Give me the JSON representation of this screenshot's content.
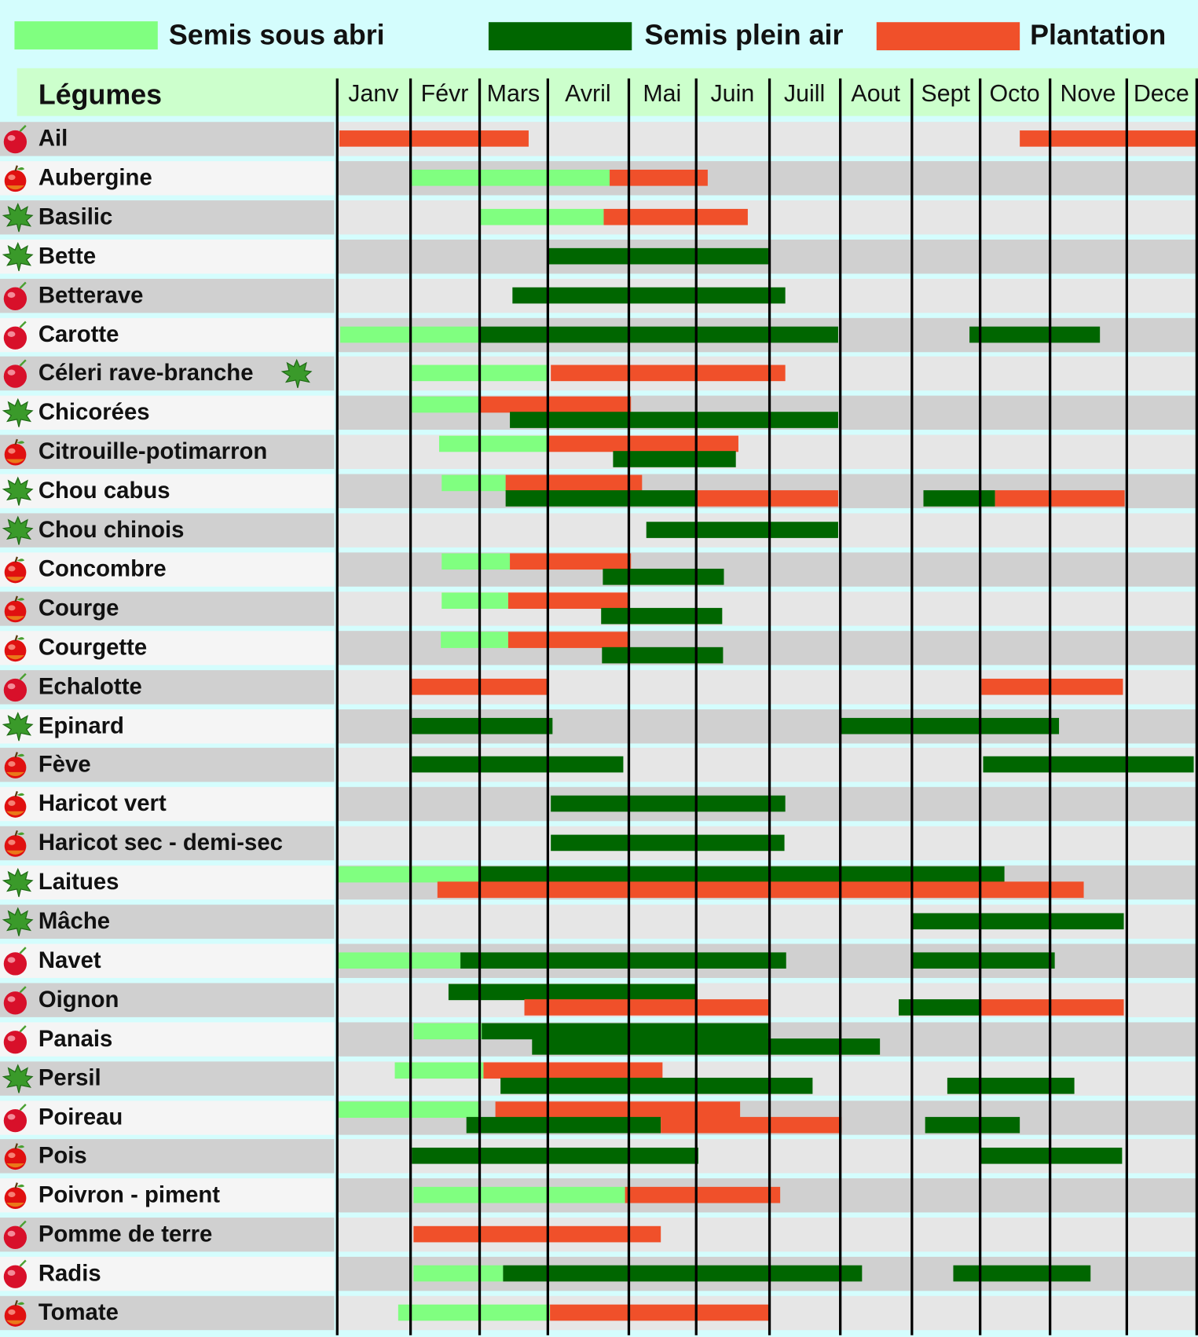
{
  "colors": {
    "abri": "#80ff80",
    "plein": "#006600",
    "plantation": "#f0502a",
    "header": "#ccffcc",
    "background": "#d4fdfd"
  },
  "chart_data": {
    "type": "gantt",
    "legend": [
      {
        "key": "abri",
        "label": "Semis sous abri"
      },
      {
        "key": "plein",
        "label": "Semis plein air"
      },
      {
        "key": "plantation",
        "label": "Plantation"
      }
    ],
    "legend_placement": "top",
    "row_header": "Légumes",
    "months": [
      "Janv",
      "Févr",
      "Mars",
      "Avril",
      "Mai",
      "Juin",
      "Juill",
      "Aout",
      "Sept",
      "Octo",
      "Nove",
      "Dece"
    ],
    "rows": [
      {
        "name": "Ail",
        "icon": "bulb",
        "bars": [
          {
            "type": "plantation",
            "start": 0.03,
            "end": 2.72,
            "lane": 0
          },
          {
            "type": "plantation",
            "start": 9.57,
            "end": 12,
            "lane": 0
          }
        ]
      },
      {
        "name": "Aubergine",
        "icon": "fruit",
        "bars": [
          {
            "type": "abri",
            "start": 1.02,
            "end": 3.77,
            "lane": 0
          },
          {
            "type": "plantation",
            "start": 3.77,
            "end": 5.16,
            "lane": 0
          }
        ]
      },
      {
        "name": "Basilic",
        "icon": "leaf",
        "bars": [
          {
            "type": "abri",
            "start": 2.01,
            "end": 3.69,
            "lane": 0
          },
          {
            "type": "plantation",
            "start": 3.69,
            "end": 5.71,
            "lane": 0
          }
        ]
      },
      {
        "name": "Bette",
        "icon": "leaf",
        "bars": [
          {
            "type": "plein",
            "start": 3.01,
            "end": 5.99,
            "lane": 0
          }
        ]
      },
      {
        "name": "Betterave",
        "icon": "bulb",
        "bars": [
          {
            "type": "plein",
            "start": 2.49,
            "end": 6.23,
            "lane": 0
          }
        ]
      },
      {
        "name": "Carotte",
        "icon": "bulb",
        "bars": [
          {
            "type": "abri",
            "start": 0.05,
            "end": 2,
            "lane": 0
          },
          {
            "type": "plein",
            "start": 2,
            "end": 6.98,
            "lane": 0
          },
          {
            "type": "plein",
            "start": 8.85,
            "end": 10.66,
            "lane": 0
          }
        ]
      },
      {
        "name": "Céleri rave-branche",
        "icon": "bulb",
        "icon2": "leaf",
        "bars": [
          {
            "type": "abri",
            "start": 1.02,
            "end": 3.0,
            "lane": 0
          },
          {
            "type": "plantation",
            "start": 3.04,
            "end": 6.23,
            "lane": 0
          }
        ]
      },
      {
        "name": "Chicorées",
        "icon": "leaf",
        "bars": [
          {
            "type": "abri",
            "start": 1.02,
            "end": 2.01,
            "lane": 1
          },
          {
            "type": "plantation",
            "start": 2.01,
            "end": 4.04,
            "lane": 1
          },
          {
            "type": "plein",
            "start": 2.45,
            "end": 6.98,
            "lane": 2
          }
        ]
      },
      {
        "name": "Citrouille-potimarron",
        "icon": "fruit",
        "bars": [
          {
            "type": "abri",
            "start": 1.42,
            "end": 3.0,
            "lane": 1
          },
          {
            "type": "plantation",
            "start": 3.0,
            "end": 5.58,
            "lane": 1
          },
          {
            "type": "plein",
            "start": 3.81,
            "end": 5.55,
            "lane": 2
          }
        ]
      },
      {
        "name": "Chou cabus",
        "icon": "leaf",
        "bars": [
          {
            "type": "abri",
            "start": 1.46,
            "end": 2.39,
            "lane": 1
          },
          {
            "type": "plantation",
            "start": 2.39,
            "end": 4.2,
            "lane": 1
          },
          {
            "type": "plein",
            "start": 2.39,
            "end": 5.02,
            "lane": 2
          },
          {
            "type": "plantation",
            "start": 5.02,
            "end": 6.98,
            "lane": 2
          },
          {
            "type": "plein",
            "start": 8.17,
            "end": 9.22,
            "lane": 2
          },
          {
            "type": "plantation",
            "start": 9.22,
            "end": 10.98,
            "lane": 2
          }
        ]
      },
      {
        "name": "Chou chinois",
        "icon": "leaf",
        "bars": [
          {
            "type": "plein",
            "start": 4.27,
            "end": 6.98,
            "lane": 0
          }
        ]
      },
      {
        "name": "Concombre",
        "icon": "fruit",
        "bars": [
          {
            "type": "abri",
            "start": 1.46,
            "end": 2.45,
            "lane": 1
          },
          {
            "type": "plantation",
            "start": 2.45,
            "end": 4.04,
            "lane": 1
          },
          {
            "type": "plein",
            "start": 3.68,
            "end": 5.38,
            "lane": 2
          }
        ]
      },
      {
        "name": "Courge",
        "icon": "fruit",
        "bars": [
          {
            "type": "abri",
            "start": 1.46,
            "end": 2.42,
            "lane": 1
          },
          {
            "type": "plantation",
            "start": 2.42,
            "end": 4.0,
            "lane": 1
          },
          {
            "type": "plein",
            "start": 3.66,
            "end": 5.36,
            "lane": 2
          }
        ]
      },
      {
        "name": "Courgette",
        "icon": "fruit",
        "bars": [
          {
            "type": "abri",
            "start": 1.44,
            "end": 2.42,
            "lane": 1
          },
          {
            "type": "plantation",
            "start": 2.42,
            "end": 4.01,
            "lane": 1
          },
          {
            "type": "plein",
            "start": 3.67,
            "end": 5.37,
            "lane": 2
          }
        ]
      },
      {
        "name": "Echalotte",
        "icon": "bulb",
        "bars": [
          {
            "type": "plantation",
            "start": 1.0,
            "end": 3.0,
            "lane": 0
          },
          {
            "type": "plantation",
            "start": 9.02,
            "end": 10.96,
            "lane": 0
          }
        ]
      },
      {
        "name": "Epinard",
        "icon": "leaf",
        "bars": [
          {
            "type": "plein",
            "start": 1.02,
            "end": 3.06,
            "lane": 0
          },
          {
            "type": "plein",
            "start": 7.01,
            "end": 10.12,
            "lane": 0
          }
        ]
      },
      {
        "name": "Fève",
        "icon": "fruit",
        "bars": [
          {
            "type": "plein",
            "start": 1.02,
            "end": 3.94,
            "lane": 0
          },
          {
            "type": "plein",
            "start": 9.05,
            "end": 11.96,
            "lane": 0
          }
        ]
      },
      {
        "name": "Haricot vert",
        "icon": "fruit",
        "bars": [
          {
            "type": "plein",
            "start": 3.04,
            "end": 6.23,
            "lane": 0
          }
        ]
      },
      {
        "name": "Haricot sec - demi-sec",
        "icon": "fruit",
        "bars": [
          {
            "type": "plein",
            "start": 3.04,
            "end": 6.22,
            "lane": 0
          }
        ]
      },
      {
        "name": "Laitues",
        "icon": "leaf",
        "bars": [
          {
            "type": "abri",
            "start": 0.02,
            "end": 2.01,
            "lane": 1
          },
          {
            "type": "plein",
            "start": 2.01,
            "end": 9.35,
            "lane": 1
          },
          {
            "type": "plantation",
            "start": 1.39,
            "end": 10.44,
            "lane": 2
          }
        ]
      },
      {
        "name": "Mâche",
        "icon": "leaf",
        "bars": [
          {
            "type": "plein",
            "start": 8.01,
            "end": 10.97,
            "lane": 0
          }
        ]
      },
      {
        "name": "Navet",
        "icon": "bulb",
        "bars": [
          {
            "type": "abri",
            "start": 0.02,
            "end": 1.73,
            "lane": 0
          },
          {
            "type": "plein",
            "start": 1.73,
            "end": 6.24,
            "lane": 0
          },
          {
            "type": "plein",
            "start": 8.01,
            "end": 10.07,
            "lane": 0
          }
        ]
      },
      {
        "name": "Oignon",
        "icon": "bulb",
        "bars": [
          {
            "type": "plein",
            "start": 1.55,
            "end": 5.02,
            "lane": 1
          },
          {
            "type": "plantation",
            "start": 2.66,
            "end": 5.99,
            "lane": 2
          },
          {
            "type": "plein",
            "start": 7.82,
            "end": 9.0,
            "lane": 2
          },
          {
            "type": "plantation",
            "start": 9.0,
            "end": 10.97,
            "lane": 2
          }
        ]
      },
      {
        "name": "Panais",
        "icon": "bulb",
        "bars": [
          {
            "type": "abri",
            "start": 1.05,
            "end": 2.04,
            "lane": 1
          },
          {
            "type": "plein",
            "start": 2.04,
            "end": 5.99,
            "lane": 1
          },
          {
            "type": "plein",
            "start": 2.77,
            "end": 7.56,
            "lane": 2
          }
        ]
      },
      {
        "name": "Persil",
        "icon": "leaf",
        "bars": [
          {
            "type": "abri",
            "start": 0.79,
            "end": 2.06,
            "lane": 1
          },
          {
            "type": "plantation",
            "start": 2.06,
            "end": 4.51,
            "lane": 1
          },
          {
            "type": "plein",
            "start": 2.31,
            "end": 6.61,
            "lane": 2
          },
          {
            "type": "plein",
            "start": 8.52,
            "end": 10.32,
            "lane": 2
          }
        ]
      },
      {
        "name": "Poireau",
        "icon": "bulb",
        "bars": [
          {
            "type": "abri",
            "start": 0.02,
            "end": 2.01,
            "lane": 1
          },
          {
            "type": "plantation",
            "start": 2.24,
            "end": 5.6,
            "lane": 1
          },
          {
            "type": "plein",
            "start": 1.81,
            "end": 4.48,
            "lane": 2
          },
          {
            "type": "plantation",
            "start": 4.48,
            "end": 7.02,
            "lane": 2
          },
          {
            "type": "plein",
            "start": 8.2,
            "end": 9.57,
            "lane": 2
          }
        ]
      },
      {
        "name": "Pois",
        "icon": "fruit",
        "bars": [
          {
            "type": "plein",
            "start": 1.02,
            "end": 5.03,
            "lane": 0
          },
          {
            "type": "plein",
            "start": 9.0,
            "end": 10.94,
            "lane": 0
          }
        ]
      },
      {
        "name": "Poivron - piment",
        "icon": "fruit",
        "bars": [
          {
            "type": "abri",
            "start": 1.05,
            "end": 3.96,
            "lane": 0
          },
          {
            "type": "plantation",
            "start": 3.96,
            "end": 6.16,
            "lane": 0
          }
        ]
      },
      {
        "name": "Pomme de terre",
        "icon": "bulb",
        "bars": [
          {
            "type": "plantation",
            "start": 1.05,
            "end": 4.48,
            "lane": 0
          }
        ]
      },
      {
        "name": "Radis",
        "icon": "bulb",
        "bars": [
          {
            "type": "abri",
            "start": 1.05,
            "end": 2.35,
            "lane": 0
          },
          {
            "type": "plein",
            "start": 2.35,
            "end": 7.31,
            "lane": 0
          },
          {
            "type": "plein",
            "start": 8.61,
            "end": 10.53,
            "lane": 0
          }
        ]
      },
      {
        "name": "Tomate",
        "icon": "fruit",
        "bars": [
          {
            "type": "abri",
            "start": 0.84,
            "end": 3.03,
            "lane": 0
          },
          {
            "type": "plantation",
            "start": 3.03,
            "end": 6.0,
            "lane": 0
          }
        ]
      }
    ]
  }
}
